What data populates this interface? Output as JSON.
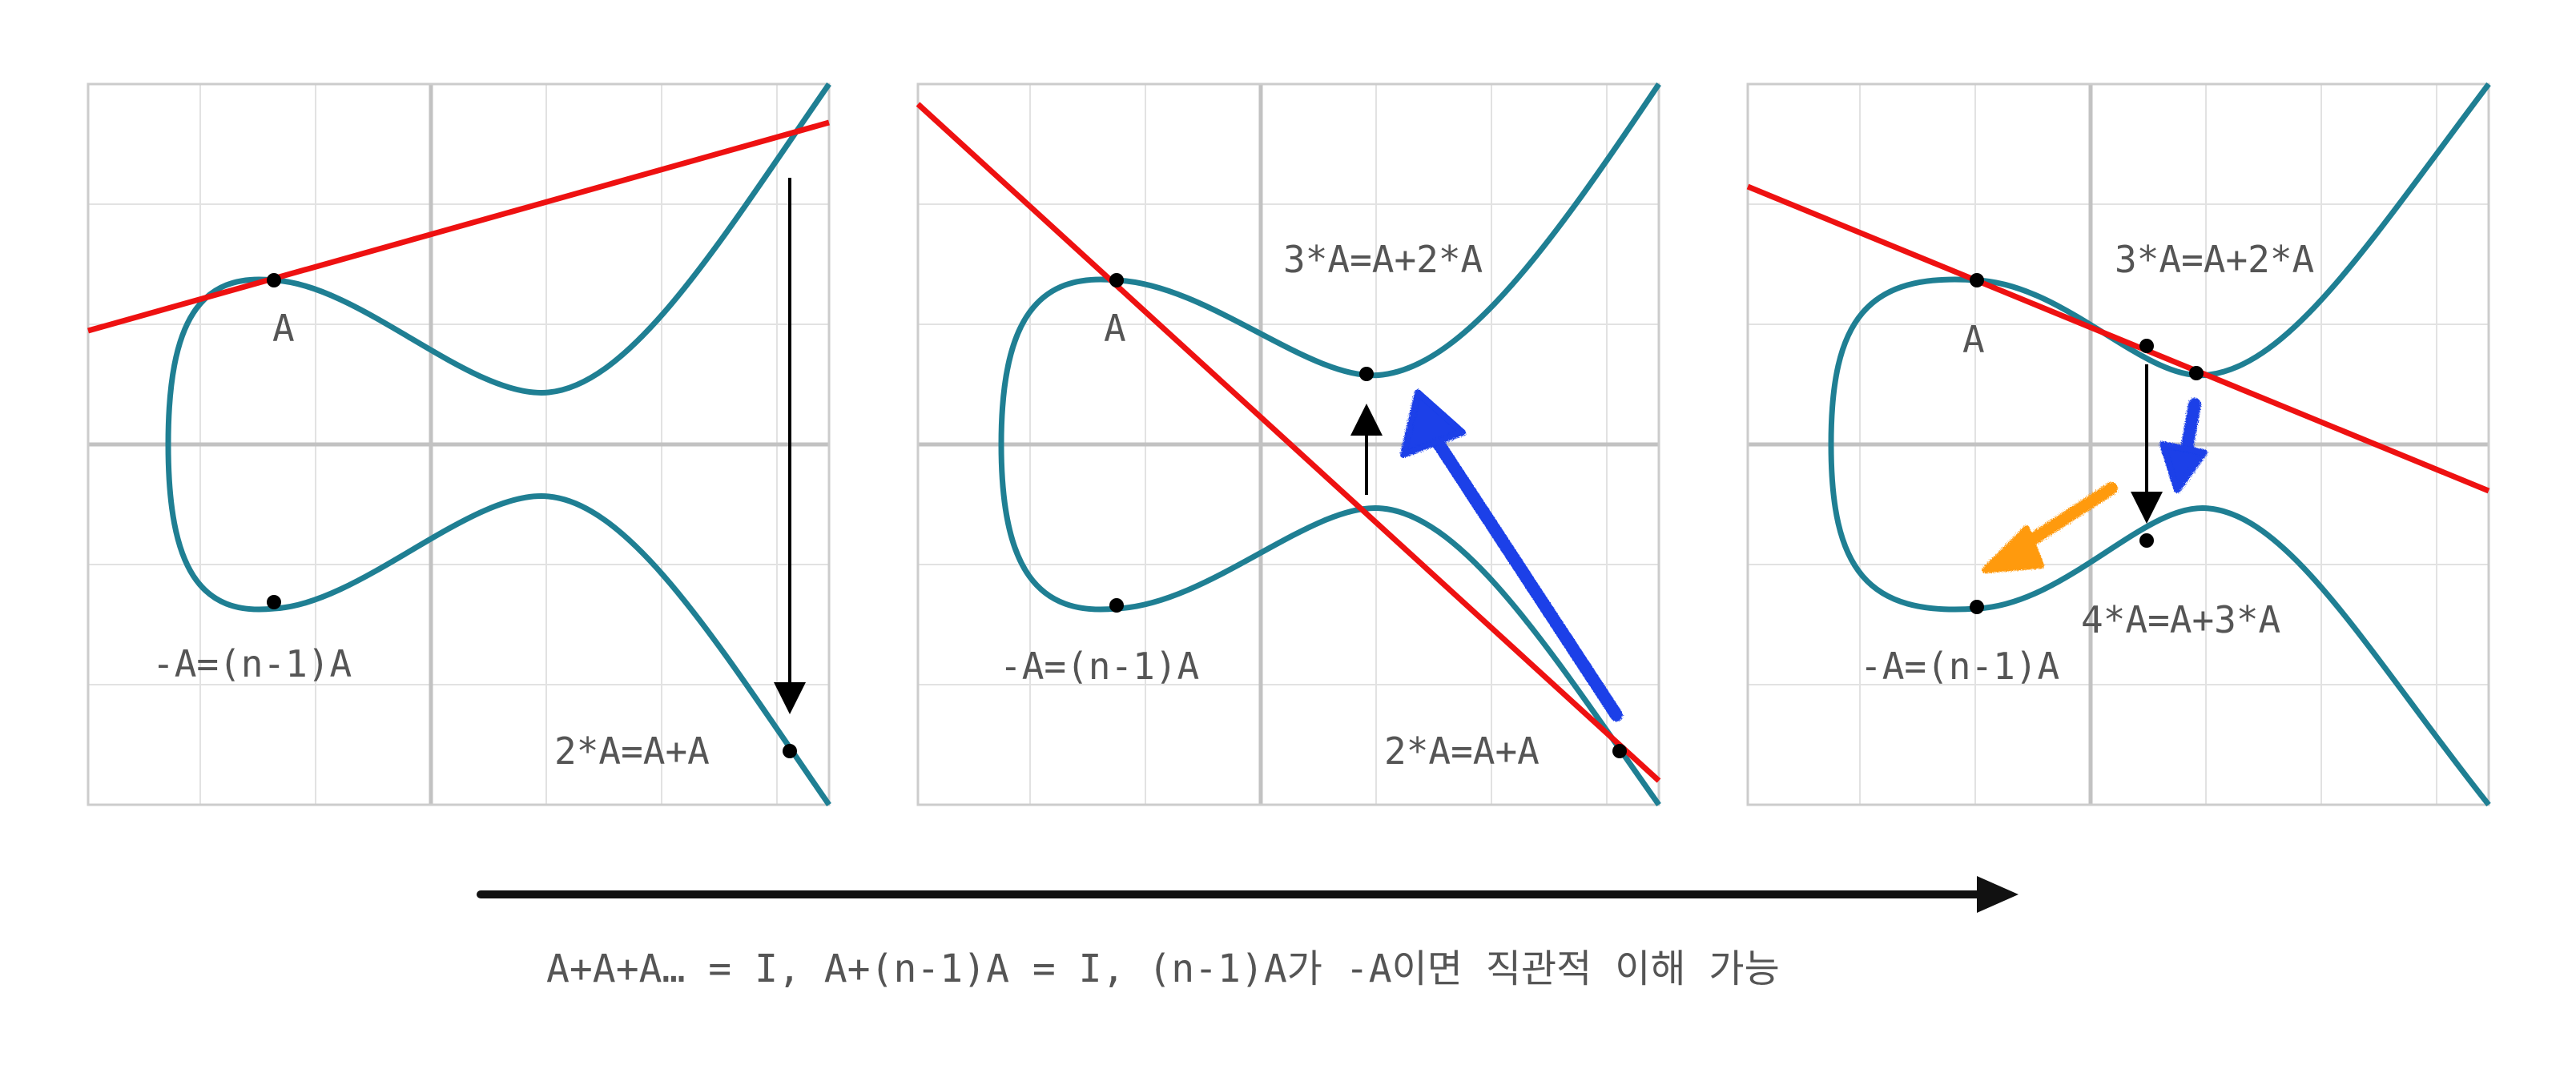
{
  "colors": {
    "curve": "#1f7f93",
    "secant": "#ee1111",
    "grid": "#e2e2e2",
    "axis": "#c2c2c2",
    "frame": "#cccccc",
    "point": "#000000",
    "blue_arrow": "#1a3fe8",
    "orange_arrow": "#ff9a10",
    "label": "#555555"
  },
  "panels": [
    {
      "labels": {
        "a": "A",
        "neg_a": "-A=(n-1)A",
        "two_a": "2*A=A+A"
      }
    },
    {
      "labels": {
        "a": "A",
        "neg_a": "-A=(n-1)A",
        "two_a": "2*A=A+A",
        "three_a": "3*A=A+2*A"
      }
    },
    {
      "labels": {
        "a": "A",
        "neg_a": "-A=(n-1)A",
        "three_a": "3*A=A+2*A",
        "four_a": "4*A=A+3*A"
      }
    }
  ],
  "caption": "A+A+A… = I, A+(n-1)A = I, (n-1)A가 -A이면 직관적 이해 가능",
  "icons": {
    "progress_arrow": "long-right-arrow-icon",
    "blue_arrow": "blue-arrow-icon",
    "orange_arrow": "orange-arrow-icon"
  }
}
